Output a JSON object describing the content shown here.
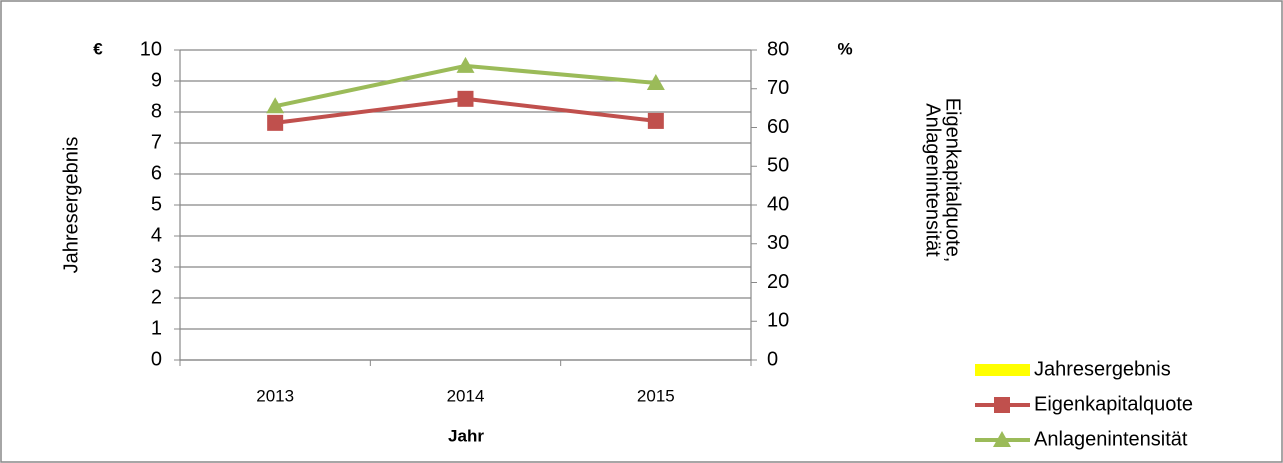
{
  "chart_data": {
    "type": "line",
    "xlabel": "Jahr",
    "ylabel": "Jahresergebnis",
    "y_unit": "€",
    "y2_unit": "%",
    "y2label": [
      "Eigenkapitalquote,",
      "Anlagenintensität"
    ],
    "categories": [
      "2013",
      "2014",
      "2015"
    ],
    "ylim": [
      0,
      10
    ],
    "yticks": [
      0,
      1,
      2,
      3,
      4,
      5,
      6,
      7,
      8,
      9,
      10
    ],
    "y2lim": [
      0,
      80
    ],
    "y2ticks": [
      0,
      10,
      20,
      30,
      40,
      50,
      60,
      70,
      80
    ],
    "grid": true,
    "legend": "bottom-right",
    "series": [
      {
        "name": "Jahresergebnis",
        "type": "bar",
        "color": "#ffff00",
        "values": [
          0,
          0,
          0
        ]
      },
      {
        "name": "Eigenkapitalquote",
        "type": "line",
        "marker": "square",
        "color": "#c0504d",
        "axis": "y2",
        "values": [
          61.2,
          67.4,
          61.7
        ]
      },
      {
        "name": "Anlagenintensität",
        "type": "line",
        "marker": "triangle",
        "color": "#9bbb59",
        "axis": "y2",
        "values": [
          65.5,
          75.9,
          71.5
        ]
      }
    ]
  }
}
